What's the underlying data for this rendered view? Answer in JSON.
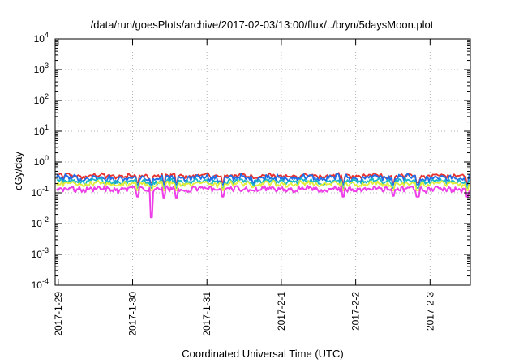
{
  "chart_data": {
    "type": "line",
    "title": "/data/run/goesPlots/archive/2017-02-03/13:00/flux/../bryn/5daysMoon.plot",
    "xlabel": "Coordinated Universal Time (UTC)",
    "ylabel": "cGy/day",
    "yscale": "log",
    "ylim": [
      0.0001,
      10000
    ],
    "y_ticks": [
      {
        "base": "10",
        "exp": "-4",
        "value": 0.0001
      },
      {
        "base": "10",
        "exp": "-3",
        "value": 0.001
      },
      {
        "base": "10",
        "exp": "-2",
        "value": 0.01
      },
      {
        "base": "10",
        "exp": "-1",
        "value": 0.1
      },
      {
        "base": "10",
        "exp": "0",
        "value": 1
      },
      {
        "base": "10",
        "exp": "1",
        "value": 10
      },
      {
        "base": "10",
        "exp": "2",
        "value": 100
      },
      {
        "base": "10",
        "exp": "3",
        "value": 1000
      },
      {
        "base": "10",
        "exp": "4",
        "value": 10000
      }
    ],
    "xlim": [
      "2017-01-28T23:00",
      "2017-02-03T13:00"
    ],
    "x_ticks": [
      "2017-1-29",
      "2017-1-30",
      "2017-1-31",
      "2017-2-1",
      "2017-2-2",
      "2017-2-3"
    ],
    "grid": true,
    "series": [
      {
        "color": "#e8302c",
        "baseline": 0.36,
        "spread": 0.06
      },
      {
        "color": "#1e6ee8",
        "baseline": 0.31,
        "spread": 0.08
      },
      {
        "color": "#18b6c8",
        "baseline": 0.24,
        "spread": 0.05
      },
      {
        "color": "#e2ee3a",
        "baseline": 0.2,
        "spread": 0.04
      },
      {
        "color": "#ee3ee8",
        "baseline": 0.135,
        "spread": 0.03
      }
    ],
    "dips": [
      {
        "x": "2017-01-30T01:30",
        "y": 0.075
      },
      {
        "x": "2017-01-30T06:00",
        "y": 0.016
      },
      {
        "x": "2017-01-30T10:00",
        "y": 0.07
      },
      {
        "x": "2017-01-30T14:00",
        "y": 0.07
      },
      {
        "x": "2017-01-31T05:00",
        "y": 0.075
      },
      {
        "x": "2017-02-01T20:00",
        "y": 0.075
      },
      {
        "x": "2017-02-02T12:00",
        "y": 0.08
      },
      {
        "x": "2017-02-02T20:00",
        "y": 0.075
      },
      {
        "x": "2017-02-03T12:00",
        "y": 0.075
      }
    ]
  }
}
